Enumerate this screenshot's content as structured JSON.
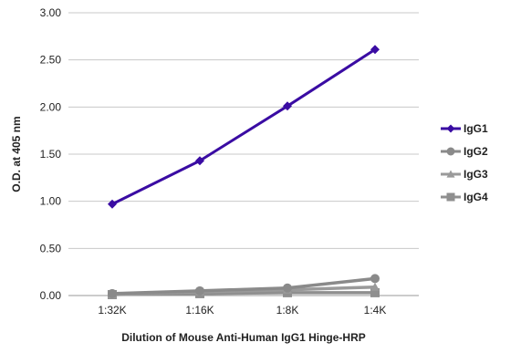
{
  "chart_data": {
    "type": "line",
    "title": "",
    "xlabel": "Dilution of Mouse Anti-Human IgG1 Hinge-HRP",
    "ylabel": "O.D. at 405 nm",
    "categories": [
      "1:32K",
      "1:16K",
      "1:8K",
      "1:4K"
    ],
    "ylim": [
      0,
      3
    ],
    "yticks": [
      "0.00",
      "0.50",
      "1.00",
      "1.50",
      "2.00",
      "2.50",
      "3.00"
    ],
    "grid": true,
    "legend_position": "right",
    "series": [
      {
        "name": "IgG1",
        "values": [
          0.97,
          1.43,
          2.01,
          2.61
        ],
        "color": "#3a0ca3",
        "marker": "diamond"
      },
      {
        "name": "IgG2",
        "values": [
          0.02,
          0.05,
          0.08,
          0.18
        ],
        "color": "#8a8a8a",
        "marker": "circle"
      },
      {
        "name": "IgG3",
        "values": [
          0.01,
          0.04,
          0.06,
          0.09
        ],
        "color": "#9a9a9a",
        "marker": "triangle"
      },
      {
        "name": "IgG4",
        "values": [
          0.01,
          0.02,
          0.03,
          0.03
        ],
        "color": "#8f8f8f",
        "marker": "square"
      }
    ]
  }
}
